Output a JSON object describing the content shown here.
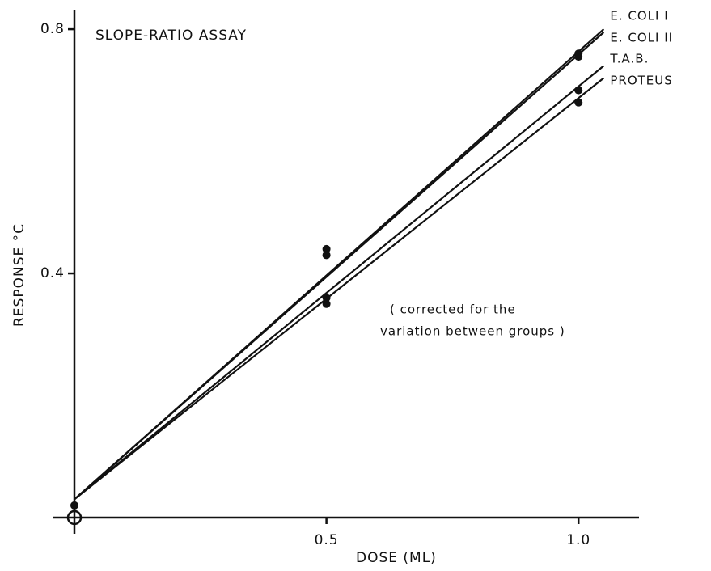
{
  "chart_data": {
    "type": "line",
    "title": "SLOPE-RATIO ASSAY",
    "xlabel": "DOSE (ML)",
    "ylabel": "RESPONSE °C",
    "annotation": [
      "( corrected for the",
      "variation between groups )"
    ],
    "x": [
      0,
      1.05
    ],
    "series": [
      {
        "name": "E. COLI I",
        "color": "#111111",
        "values": [
          0.03,
          0.8
        ]
      },
      {
        "name": "E. COLI II",
        "color": "#111111",
        "values": [
          0.03,
          0.795
        ]
      },
      {
        "name": "T.A.B.",
        "color": "#111111",
        "values": [
          0.03,
          0.74
        ]
      },
      {
        "name": "PROTEUS",
        "color": "#111111",
        "values": [
          0.03,
          0.72
        ]
      }
    ],
    "points": {
      "color": "#111111",
      "x": [
        0,
        0.5,
        0.5,
        0.5,
        0.5,
        1,
        1,
        1,
        1
      ],
      "values": [
        0.02,
        0.44,
        0.43,
        0.36,
        0.35,
        0.76,
        0.755,
        0.7,
        0.68
      ]
    },
    "xlim": [
      0,
      1.12
    ],
    "ylim": [
      0,
      0.82
    ],
    "xticks": [
      0.5,
      {
        "value": 1,
        "label": "1.0"
      }
    ],
    "yticks": [
      0.4,
      0.8
    ]
  }
}
